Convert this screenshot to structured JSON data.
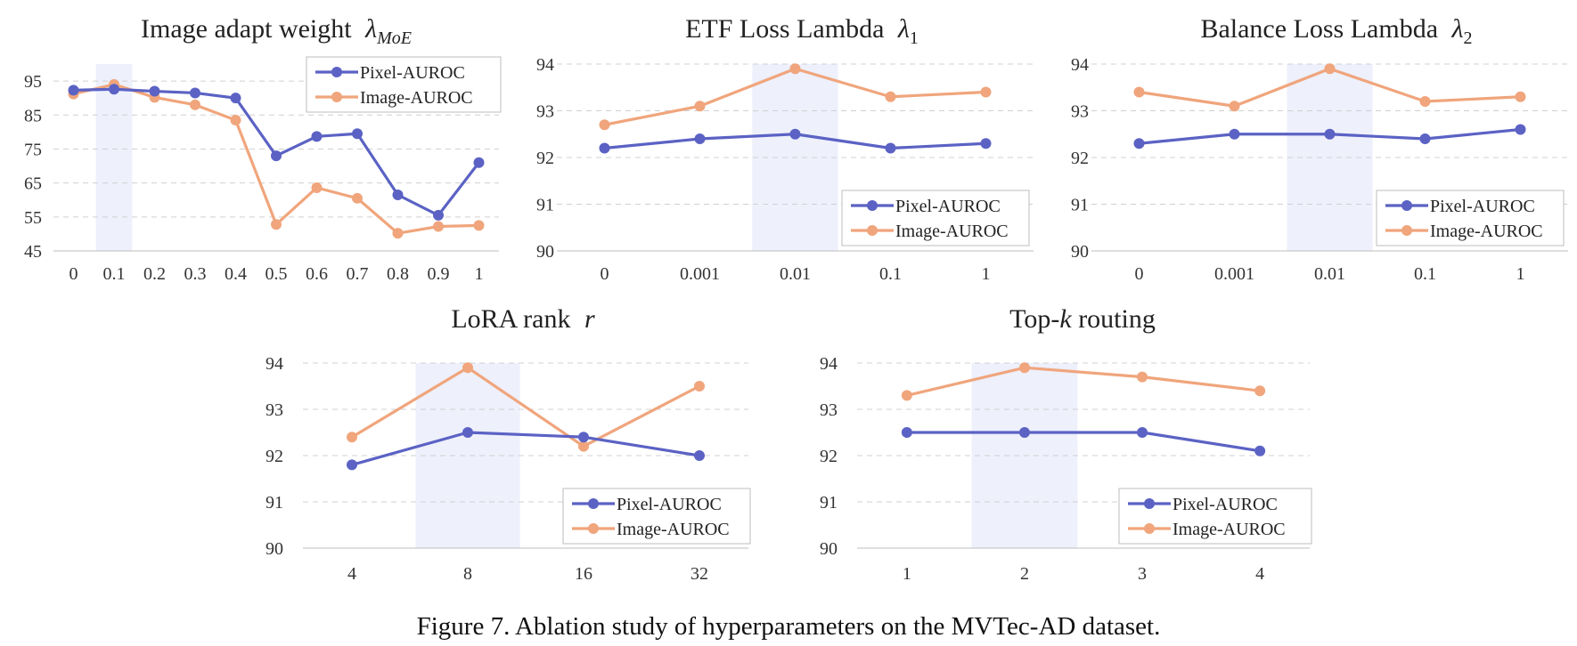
{
  "caption": "Figure 7. Ablation study of hyperparameters on the MVTec-AD dataset.",
  "colors": {
    "pixel": "#5b62c4",
    "image": "#f0a57c",
    "highlight": "#eef0fc",
    "grid": "#d0d0d0"
  },
  "chart_data": [
    {
      "type": "line",
      "title": "Image adapt weight",
      "title_symbol": "λ",
      "title_subscript": "MoE",
      "categories": [
        "0",
        "0.1",
        "0.2",
        "0.3",
        "0.4",
        "0.5",
        "0.6",
        "0.7",
        "0.8",
        "0.9",
        "1"
      ],
      "yticks": [
        "45",
        "55",
        "65",
        "75",
        "85",
        "95"
      ],
      "ylim": [
        45,
        100
      ],
      "highlight_category": "0.1",
      "legend_position": "top-right",
      "series": [
        {
          "name": "Pixel-AUROC",
          "values": [
            92.3,
            92.6,
            92.0,
            91.5,
            90.0,
            73.0,
            78.7,
            79.5,
            61.5,
            55.5,
            71.0
          ]
        },
        {
          "name": "Image-AUROC",
          "values": [
            91.2,
            94.0,
            90.2,
            88.0,
            83.5,
            52.8,
            63.6,
            60.5,
            50.2,
            52.2,
            52.5
          ]
        }
      ]
    },
    {
      "type": "line",
      "title": "ETF Loss Lambda",
      "title_symbol": "λ",
      "title_subscript": "1",
      "categories": [
        "0",
        "0.001",
        "0.01",
        "0.1",
        "1"
      ],
      "yticks": [
        "90",
        "91",
        "92",
        "93",
        "94"
      ],
      "ylim": [
        90,
        94
      ],
      "highlight_category": "0.01",
      "legend_position": "bottom-right",
      "series": [
        {
          "name": "Pixel-AUROC",
          "values": [
            92.2,
            92.4,
            92.5,
            92.2,
            92.3
          ]
        },
        {
          "name": "Image-AUROC",
          "values": [
            92.7,
            93.1,
            93.9,
            93.3,
            93.4
          ]
        }
      ]
    },
    {
      "type": "line",
      "title": "Balance Loss Lambda",
      "title_symbol": "λ",
      "title_subscript": "2",
      "categories": [
        "0",
        "0.001",
        "0.01",
        "0.1",
        "1"
      ],
      "yticks": [
        "90",
        "91",
        "92",
        "93",
        "94"
      ],
      "ylim": [
        90,
        94
      ],
      "highlight_category": "0.01",
      "legend_position": "bottom-right",
      "series": [
        {
          "name": "Pixel-AUROC",
          "values": [
            92.3,
            92.5,
            92.5,
            92.4,
            92.6
          ]
        },
        {
          "name": "Image-AUROC",
          "values": [
            93.4,
            93.1,
            93.9,
            93.2,
            93.3
          ]
        }
      ]
    },
    {
      "type": "line",
      "title": "LoRA rank",
      "title_symbol": "r",
      "title_subscript": "",
      "categories": [
        "4",
        "8",
        "16",
        "32"
      ],
      "yticks": [
        "90",
        "91",
        "92",
        "93",
        "94"
      ],
      "ylim": [
        90,
        94
      ],
      "highlight_category": "8",
      "legend_position": "bottom-right",
      "series": [
        {
          "name": "Pixel-AUROC",
          "values": [
            91.8,
            92.5,
            92.4,
            92.0
          ]
        },
        {
          "name": "Image-AUROC",
          "values": [
            92.4,
            93.9,
            92.2,
            93.5
          ]
        }
      ]
    },
    {
      "type": "line",
      "title": "Top-k routing",
      "title_symbol": "",
      "title_subscript": "",
      "categories": [
        "1",
        "2",
        "3",
        "4"
      ],
      "yticks": [
        "90",
        "91",
        "92",
        "93",
        "94"
      ],
      "ylim": [
        90,
        94
      ],
      "highlight_category": "2",
      "legend_position": "bottom-right",
      "series": [
        {
          "name": "Pixel-AUROC",
          "values": [
            92.5,
            92.5,
            92.5,
            92.1
          ]
        },
        {
          "name": "Image-AUROC",
          "values": [
            93.3,
            93.9,
            93.7,
            93.4
          ]
        }
      ]
    }
  ]
}
